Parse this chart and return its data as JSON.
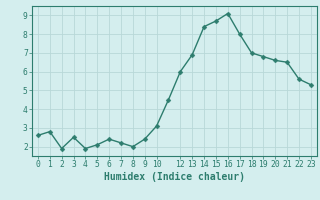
{
  "x": [
    0,
    1,
    2,
    3,
    4,
    5,
    6,
    7,
    8,
    9,
    10,
    11,
    12,
    13,
    14,
    15,
    16,
    17,
    18,
    19,
    20,
    21,
    22,
    23
  ],
  "y": [
    2.6,
    2.8,
    1.9,
    2.5,
    1.9,
    2.1,
    2.4,
    2.2,
    2.0,
    2.4,
    3.1,
    4.5,
    6.0,
    6.9,
    8.4,
    8.7,
    9.1,
    8.0,
    7.0,
    6.8,
    6.6,
    6.5,
    5.6,
    5.3
  ],
  "line_color": "#2d7d6e",
  "marker_color": "#2d7d6e",
  "bg_color": "#d4eeee",
  "grid_color": "#b8d8d8",
  "axis_color": "#2d7d6e",
  "spine_color": "#2d7d6e",
  "xlabel": "Humidex (Indice chaleur)",
  "xlim": [
    -0.5,
    23.5
  ],
  "ylim": [
    1.5,
    9.5
  ],
  "yticks": [
    2,
    3,
    4,
    5,
    6,
    7,
    8,
    9
  ],
  "xticks": [
    0,
    1,
    2,
    3,
    4,
    5,
    6,
    7,
    8,
    9,
    10,
    12,
    13,
    14,
    15,
    16,
    17,
    18,
    19,
    20,
    21,
    22,
    23
  ],
  "tick_label_fontsize": 5.8,
  "xlabel_fontsize": 7.0,
  "linewidth": 1.0,
  "markersize": 2.5
}
